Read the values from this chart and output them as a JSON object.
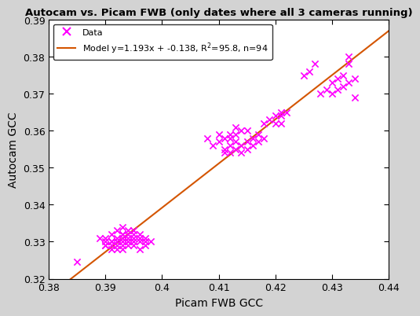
{
  "title": "Autocam vs. Picam FWB (only dates where all 3 cameras running)",
  "xlabel": "Picam FWB GCC",
  "ylabel": "Autocam GCC",
  "xlim": [
    0.38,
    0.44
  ],
  "ylim": [
    0.32,
    0.39
  ],
  "xticks": [
    0.38,
    0.39,
    0.4,
    0.41,
    0.42,
    0.43,
    0.44
  ],
  "xtick_labels": [
    "0.38",
    "0.39",
    "0.4",
    "0.41",
    "0.42",
    "0.43",
    "0.44"
  ],
  "yticks": [
    0.32,
    0.33,
    0.34,
    0.35,
    0.36,
    0.37,
    0.38,
    0.39
  ],
  "ytick_labels": [
    "0.32",
    "0.33",
    "0.34",
    "0.35",
    "0.36",
    "0.37",
    "0.38",
    "0.39"
  ],
  "slope": 1.193,
  "intercept": -0.138,
  "r2": 95.8,
  "n": 94,
  "line_color": "#d45500",
  "marker_color": "#ff00ff",
  "background_color": "#d3d3d3",
  "plot_bg_color": "#ffffff",
  "legend_label_data": "Data",
  "legend_label_model": "Model y=1.193x + -0.138, R$^2$=95.8, n=94",
  "scatter_x": [
    0.385,
    0.389,
    0.39,
    0.39,
    0.39,
    0.39,
    0.391,
    0.391,
    0.391,
    0.391,
    0.391,
    0.391,
    0.392,
    0.392,
    0.392,
    0.392,
    0.392,
    0.392,
    0.393,
    0.393,
    0.393,
    0.393,
    0.393,
    0.393,
    0.393,
    0.394,
    0.394,
    0.394,
    0.394,
    0.394,
    0.394,
    0.395,
    0.395,
    0.395,
    0.395,
    0.395,
    0.396,
    0.396,
    0.396,
    0.396,
    0.397,
    0.397,
    0.397,
    0.398,
    0.408,
    0.409,
    0.41,
    0.41,
    0.411,
    0.411,
    0.411,
    0.412,
    0.412,
    0.412,
    0.412,
    0.413,
    0.413,
    0.413,
    0.413,
    0.414,
    0.414,
    0.414,
    0.415,
    0.415,
    0.415,
    0.416,
    0.416,
    0.417,
    0.417,
    0.418,
    0.418,
    0.419,
    0.42,
    0.42,
    0.421,
    0.421,
    0.421,
    0.422,
    0.425,
    0.426,
    0.427,
    0.428,
    0.429,
    0.43,
    0.43,
    0.431,
    0.431,
    0.432,
    0.432,
    0.433,
    0.433,
    0.433,
    0.434,
    0.434
  ],
  "scatter_y": [
    0.3245,
    0.331,
    0.329,
    0.329,
    0.33,
    0.331,
    0.328,
    0.329,
    0.33,
    0.33,
    0.33,
    0.332,
    0.328,
    0.329,
    0.33,
    0.33,
    0.331,
    0.333,
    0.328,
    0.329,
    0.33,
    0.331,
    0.332,
    0.332,
    0.334,
    0.329,
    0.33,
    0.33,
    0.331,
    0.332,
    0.333,
    0.329,
    0.33,
    0.331,
    0.332,
    0.333,
    0.328,
    0.33,
    0.331,
    0.332,
    0.329,
    0.33,
    0.331,
    0.33,
    0.358,
    0.356,
    0.357,
    0.359,
    0.354,
    0.355,
    0.358,
    0.354,
    0.356,
    0.358,
    0.359,
    0.355,
    0.357,
    0.359,
    0.361,
    0.354,
    0.356,
    0.36,
    0.355,
    0.357,
    0.36,
    0.356,
    0.358,
    0.357,
    0.359,
    0.358,
    0.362,
    0.363,
    0.362,
    0.364,
    0.362,
    0.364,
    0.365,
    0.365,
    0.375,
    0.376,
    0.378,
    0.37,
    0.371,
    0.37,
    0.373,
    0.371,
    0.374,
    0.372,
    0.375,
    0.373,
    0.378,
    0.38,
    0.374,
    0.369
  ]
}
